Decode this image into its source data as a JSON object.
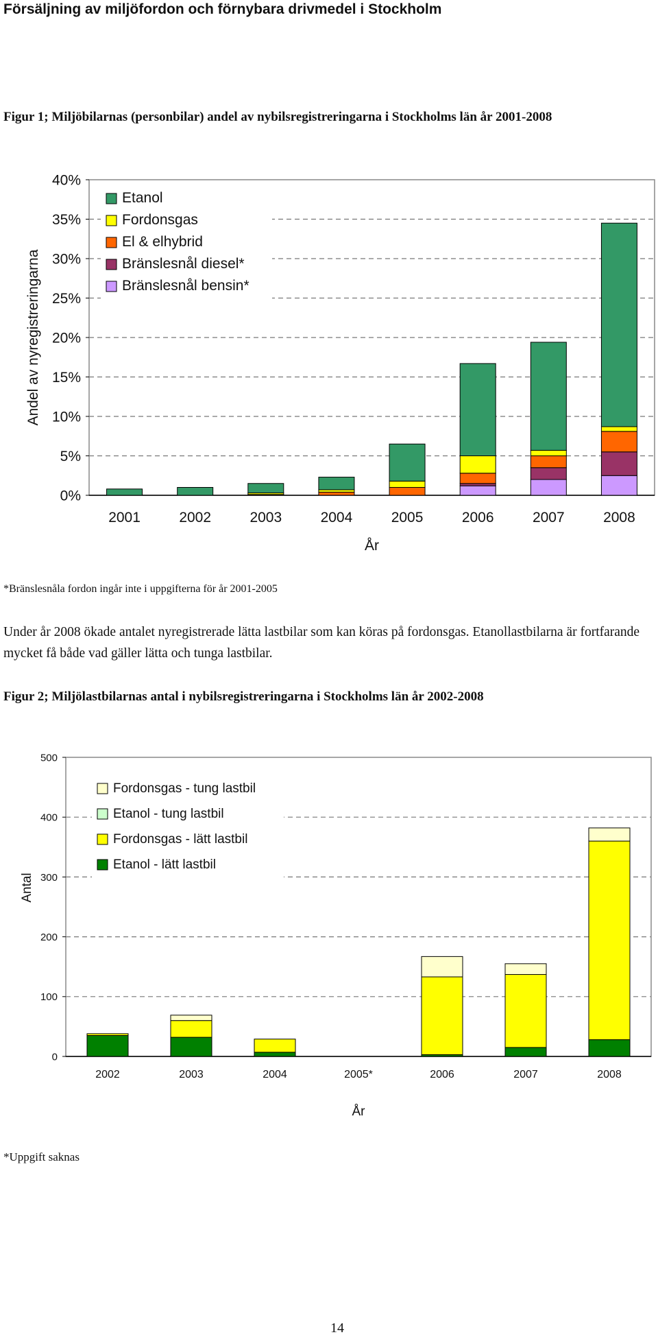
{
  "page": {
    "title": "Försäljning av miljöfordon och förnybara drivmedel i Stockholm",
    "fig1_caption": "Figur 1; Miljöbilarnas (personbilar) andel av nybilsregistreringarna i Stockholms län år 2001-2008",
    "fig1_note": "*Bränslesnåla fordon ingår inte i uppgifterna för år 2001-2005",
    "paragraph": "Under år 2008 ökade antalet nyregistrerade lätta lastbilar som kan köras på fordonsgas. Etanollastbilarna är fortfarande mycket få både vad gäller lätta och tunga lastbilar.",
    "fig2_caption": "Figur 2; Miljölastbilarnas antal i nybilsregistreringarna i Stockholms län år 2002-2008",
    "fig2_note": "*Uppgift saknas",
    "page_number": "14"
  },
  "chart_data": [
    {
      "type": "bar",
      "stacked": true,
      "xlabel": "År",
      "ylabel": "Andel av nyregistreringarna",
      "ylim": [
        0,
        40
      ],
      "yticks": [
        "0%",
        "5%",
        "10%",
        "15%",
        "20%",
        "25%",
        "30%",
        "35%",
        "40%"
      ],
      "grid": "dashed horizontal",
      "legend_position": "top-left",
      "categories": [
        "2001",
        "2002",
        "2003",
        "2004",
        "2005",
        "2006",
        "2007",
        "2008"
      ],
      "series": [
        {
          "name": "Bränslesnål bensin*",
          "color": "#CC99FF",
          "values": [
            0,
            0,
            0,
            0,
            0,
            1.2,
            2.0,
            2.5
          ]
        },
        {
          "name": "Bränslesnål diesel*",
          "color": "#993366",
          "values": [
            0,
            0,
            0,
            0,
            0,
            0.3,
            1.5,
            3.0
          ]
        },
        {
          "name": "El & elhybrid",
          "color": "#FF6600",
          "values": [
            0,
            0,
            0.1,
            0.4,
            1.0,
            1.3,
            1.5,
            2.6
          ]
        },
        {
          "name": "Fordonsgas",
          "color": "#FFFF00",
          "values": [
            0,
            0,
            0.2,
            0.3,
            0.8,
            2.2,
            0.7,
            0.6
          ]
        },
        {
          "name": "Etanol",
          "color": "#339966",
          "values": [
            0.8,
            1.0,
            1.2,
            1.6,
            4.7,
            11.7,
            13.7,
            25.8
          ]
        }
      ]
    },
    {
      "type": "bar",
      "stacked": true,
      "xlabel": "År",
      "ylabel": "Antal",
      "ylim": [
        0,
        500
      ],
      "yticks": [
        "0",
        "100",
        "200",
        "300",
        "400",
        "500"
      ],
      "grid": "dashed horizontal",
      "legend_position": "top-left",
      "categories": [
        "2002",
        "2003",
        "2004",
        "2005*",
        "2006",
        "2007",
        "2008"
      ],
      "series": [
        {
          "name": "Etanol - lätt lastbil",
          "color": "#008000",
          "values": [
            35,
            32,
            7,
            0,
            3,
            15,
            28
          ]
        },
        {
          "name": "Fordonsgas - lätt lastbil",
          "color": "#FFFF00",
          "values": [
            3,
            28,
            22,
            0,
            130,
            122,
            332
          ]
        },
        {
          "name": "Etanol - tung lastbil",
          "color": "#CCFFCC",
          "values": [
            0,
            0,
            0,
            0,
            0,
            0,
            0
          ]
        },
        {
          "name": "Fordonsgas - tung lastbil",
          "color": "#FFFFCC",
          "values": [
            0,
            9,
            0,
            0,
            34,
            18,
            22
          ]
        }
      ]
    }
  ]
}
